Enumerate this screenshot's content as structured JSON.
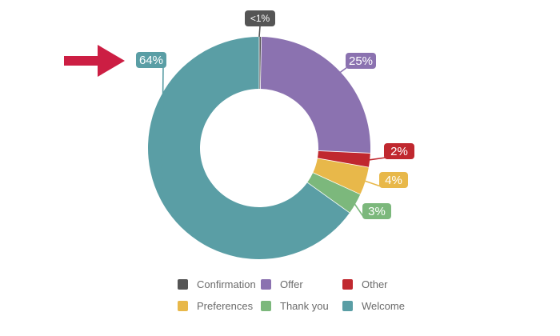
{
  "chart_data": {
    "type": "donut",
    "title": "",
    "start": "top, clockwise",
    "slices": [
      {
        "name": "Confirmation",
        "value": 0.3,
        "label": "<1%",
        "color": "#555555"
      },
      {
        "name": "Offer",
        "value": 25,
        "label": "25%",
        "color": "#8b72b0"
      },
      {
        "name": "Other",
        "value": 2,
        "label": "2%",
        "color": "#c0282f"
      },
      {
        "name": "Preferences",
        "value": 4,
        "label": "4%",
        "color": "#e8b84a"
      },
      {
        "name": "Thank you",
        "value": 3,
        "label": "3%",
        "color": "#7cb87c"
      },
      {
        "name": "Welcome",
        "value": 64,
        "label": "64%",
        "color": "#5a9ea5"
      }
    ],
    "legend_position": "bottom",
    "highlight_arrow": {
      "points_to": "64%",
      "color": "#cc1e43"
    }
  },
  "legend": {
    "rows": [
      [
        {
          "name": "Confirmation",
          "color": "#555555"
        },
        {
          "name": "Offer",
          "color": "#8b72b0"
        },
        {
          "name": "Other",
          "color": "#c0282f"
        }
      ],
      [
        {
          "name": "Preferences",
          "color": "#e8b84a"
        },
        {
          "name": "Thank you",
          "color": "#7cb87c"
        },
        {
          "name": "Welcome",
          "color": "#5a9ea5"
        }
      ]
    ]
  }
}
